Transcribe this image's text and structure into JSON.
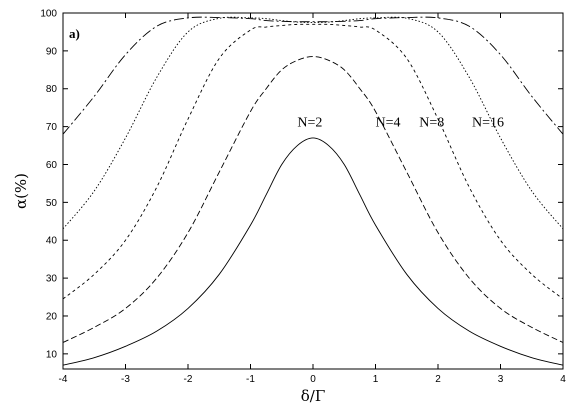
{
  "chart_data": {
    "type": "line",
    "panel_label": "a)",
    "xlabel": "δ/Γ",
    "ylabel": "α(%)",
    "xlim": [
      -4,
      4
    ],
    "ylim": [
      6,
      100
    ],
    "x_ticks": [
      -4,
      -3,
      -2,
      -1,
      0,
      1,
      2,
      3,
      4
    ],
    "y_ticks": [
      10,
      20,
      30,
      40,
      50,
      60,
      70,
      80,
      90,
      100
    ],
    "grid": false,
    "legend": "none",
    "x": [
      -4,
      -3.5,
      -3,
      -2.5,
      -2,
      -1.5,
      -1,
      -0.75,
      -0.5,
      -0.25,
      0,
      0.25,
      0.5,
      0.75,
      1,
      1.5,
      2,
      2.5,
      3,
      3.5,
      4
    ],
    "series": [
      {
        "name": "N=2",
        "dash": "",
        "values": [
          7,
          9,
          12,
          16,
          22,
          31,
          44,
          52,
          60,
          65,
          67,
          65,
          60,
          52,
          44,
          31,
          22,
          16,
          12,
          9,
          7
        ]
      },
      {
        "name": "N=4",
        "dash": "6,3",
        "values": [
          13,
          17,
          22,
          30,
          42,
          58,
          74,
          80,
          85,
          87.5,
          88.5,
          87.5,
          85,
          80,
          74,
          58,
          42,
          30,
          22,
          17,
          13
        ]
      },
      {
        "name": "N=8",
        "dash": "3,3",
        "values": [
          24.5,
          31,
          40,
          54,
          72,
          88,
          95.5,
          96.3,
          96.7,
          97,
          97,
          97,
          96.7,
          96.3,
          95.5,
          88,
          72,
          54,
          40,
          31,
          24.5
        ]
      },
      {
        "name": "N=16",
        "dash": "1.5,2",
        "values": [
          43,
          53,
          67,
          83,
          95,
          98.6,
          98.7,
          98.5,
          98,
          97.6,
          97.5,
          97.6,
          98,
          98.5,
          98.7,
          98.6,
          95,
          83,
          67,
          53,
          43
        ]
      },
      {
        "name": "",
        "dash": "10,3,2,3",
        "values": [
          68,
          78,
          89,
          96.5,
          98.7,
          98.8,
          98.5,
          98,
          97.8,
          97.7,
          97.7,
          97.7,
          97.8,
          98,
          98.5,
          98.8,
          98.7,
          96.5,
          89,
          78,
          68
        ]
      }
    ],
    "curve_labels": [
      {
        "text": "N=2",
        "x": -0.05,
        "y": 70
      },
      {
        "text": "N=4",
        "x": 1.2,
        "y": 70
      },
      {
        "text": "N=8",
        "x": 1.9,
        "y": 70
      },
      {
        "text": "N=16",
        "x": 2.8,
        "y": 70
      }
    ]
  }
}
